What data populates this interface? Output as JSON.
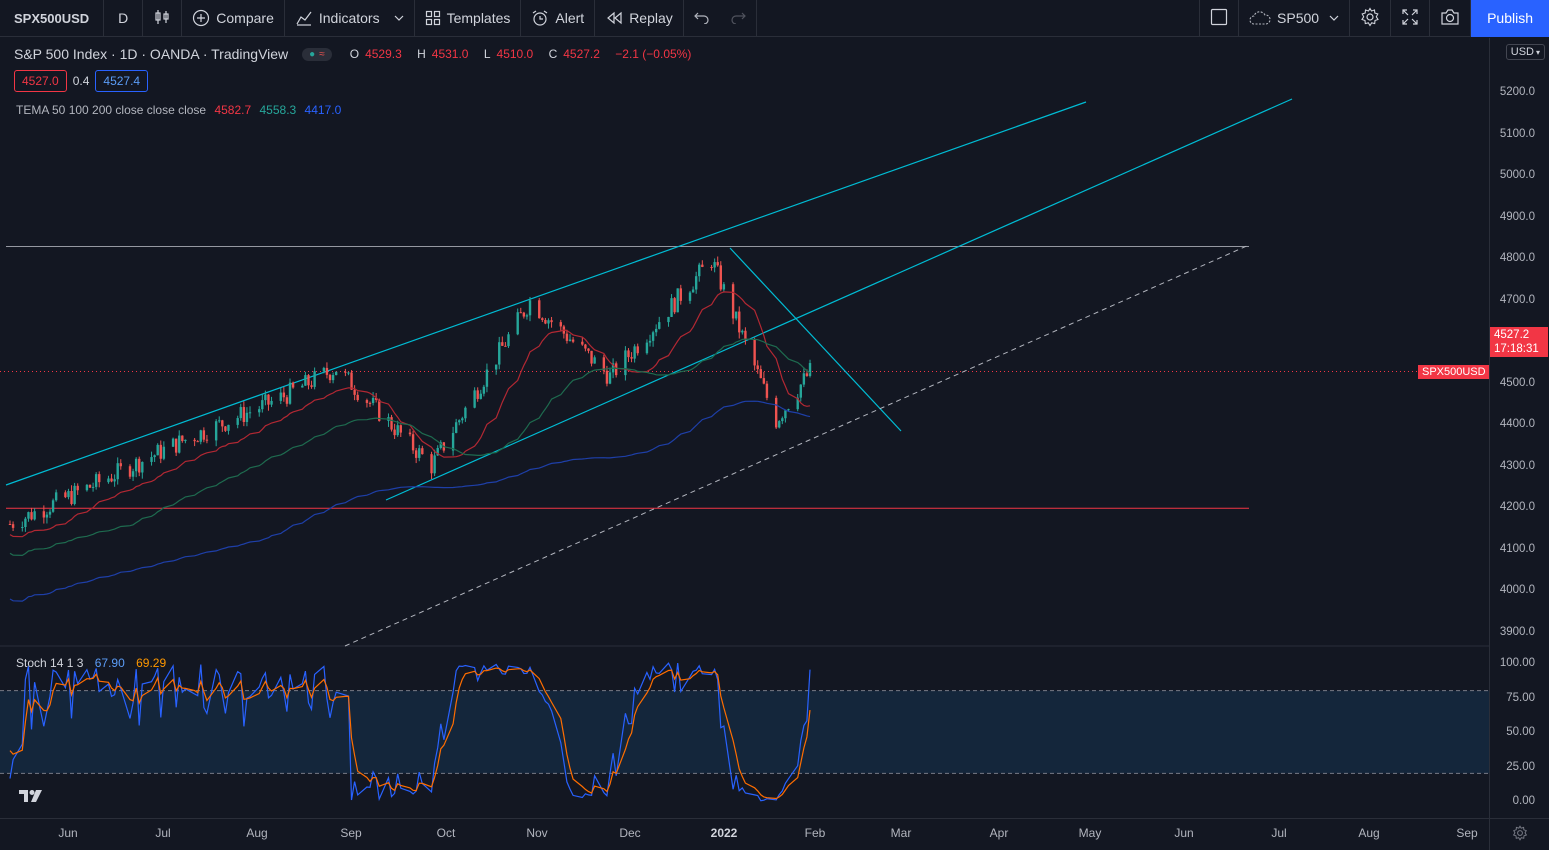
{
  "toolbar": {
    "symbol": "SPX500USD",
    "interval": "D",
    "compare_label": "Compare",
    "indicators_label": "Indicators",
    "templates_label": "Templates",
    "alert_label": "Alert",
    "replay_label": "Replay",
    "layout_name": "SP500",
    "publish_label": "Publish"
  },
  "legend": {
    "title": "S&P 500 Index · 1D · OANDA · TradingView",
    "o_label": "O",
    "o": "4529.3",
    "h_label": "H",
    "h": "4531.0",
    "l_label": "L",
    "l": "4510.0",
    "c_label": "C",
    "c": "4527.2",
    "change": "−2.1 (−0.05%)",
    "bid": "4527.0",
    "spread": "0.4",
    "ask": "4527.4"
  },
  "tema": {
    "label": "TEMA 50 100 200 close close close",
    "v1": "4582.7",
    "v2": "4558.3",
    "v3": "4417.0"
  },
  "stoch": {
    "label": "Stoch 14 1 3",
    "k": "67.90",
    "d": "69.29"
  },
  "price_axis": {
    "currency": "USD",
    "ticks": [
      "5200.0",
      "5100.0",
      "5000.0",
      "4900.0",
      "4800.0",
      "4700.0",
      "4600.0",
      "4500.0",
      "4400.0",
      "4300.0",
      "4200.0",
      "4100.0",
      "4000.0",
      "3900.0"
    ],
    "stoch_ticks": [
      "100.00",
      "75.00",
      "50.00",
      "25.00",
      "0.00"
    ],
    "last_price": "4527.2",
    "countdown": "17:18:31",
    "symbol_tag": "SPX500USD"
  },
  "time_axis": {
    "ticks": [
      "Jun",
      "Jul",
      "Aug",
      "Sep",
      "Oct",
      "Nov",
      "Dec",
      "2022",
      "Feb",
      "Mar",
      "Apr",
      "May",
      "Jun",
      "Jul",
      "Aug",
      "Sep"
    ]
  },
  "colors": {
    "up": "#26a69a",
    "down": "#ef5350",
    "trendline": "#00bcd4",
    "tema1": "#f23645",
    "tema2": "#26a69a",
    "tema3": "#2962ff",
    "stoch_k": "#2962ff",
    "stoch_d": "#ff6d00"
  },
  "chart_data": {
    "type": "candlestick",
    "symbol": "SPX500USD",
    "ylim": [
      3870,
      5250
    ],
    "stoch_ylim": [
      0,
      100
    ],
    "stoch_bands": [
      80,
      20
    ],
    "horizontal_levels": [
      4828,
      4198,
      4527.2
    ],
    "closes_sample": [
      {
        "date": "2021-05-20",
        "close": 4160
      },
      {
        "date": "2021-06-15",
        "close": 4250
      },
      {
        "date": "2021-07-15",
        "close": 4360
      },
      {
        "date": "2021-08-15",
        "close": 4460
      },
      {
        "date": "2021-09-03",
        "close": 4535
      },
      {
        "date": "2021-10-04",
        "close": 4300
      },
      {
        "date": "2021-11-05",
        "close": 4697
      },
      {
        "date": "2021-12-01",
        "close": 4515
      },
      {
        "date": "2022-01-03",
        "close": 4796
      },
      {
        "date": "2022-01-24",
        "close": 4410
      },
      {
        "date": "2022-02-04",
        "close": 4527
      }
    ]
  }
}
